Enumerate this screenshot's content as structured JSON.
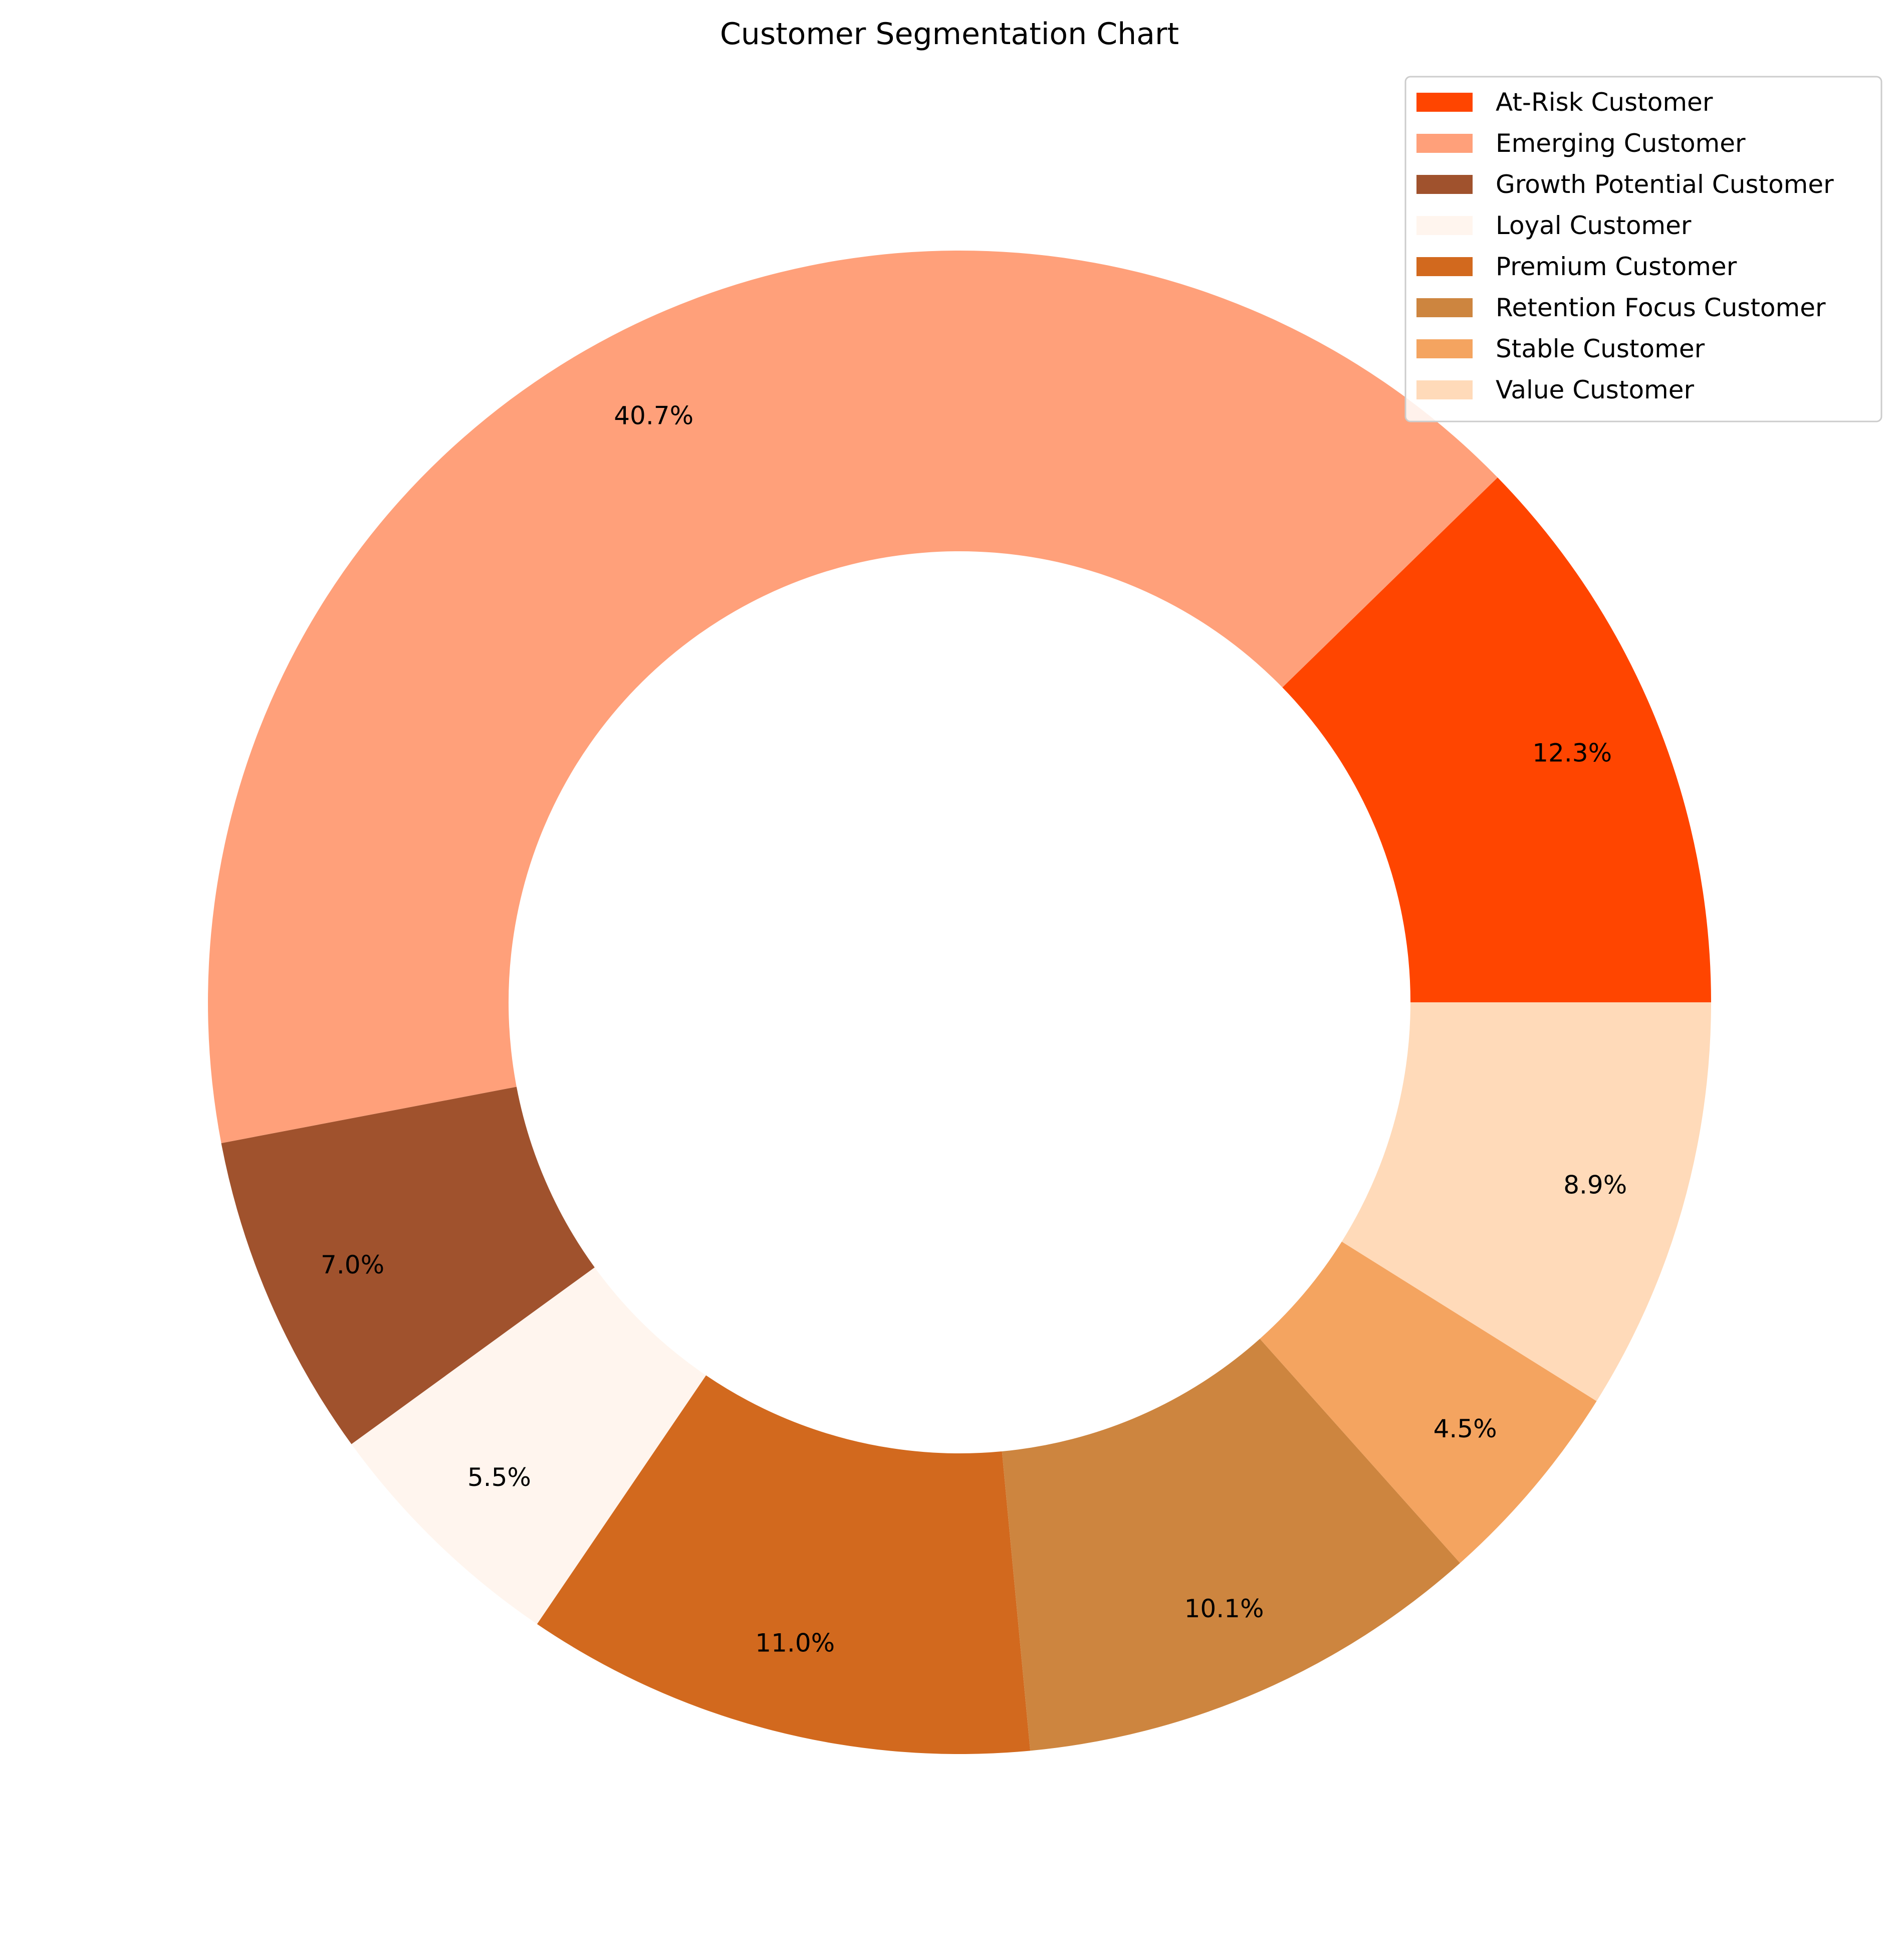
{
  "chart_data": {
    "type": "pie",
    "title": "Customer Segmentation Chart",
    "donut": true,
    "start_angle_deg": 0,
    "direction": "counterclockwise",
    "legend_position": "top-right",
    "slices": [
      {
        "label": "At-Risk Customer",
        "value": 12.3,
        "pct_label": "12.3%",
        "color": "#FF4500"
      },
      {
        "label": "Emerging Customer",
        "value": 40.7,
        "pct_label": "40.7%",
        "color": "#FFA07A"
      },
      {
        "label": "Growth Potential Customer",
        "value": 7.0,
        "pct_label": "7.0%",
        "color": "#A0522D"
      },
      {
        "label": "Loyal Customer",
        "value": 5.5,
        "pct_label": "5.5%",
        "color": "#FFF5EE"
      },
      {
        "label": "Premium Customer",
        "value": 11.0,
        "pct_label": "11.0%",
        "color": "#D2691E"
      },
      {
        "label": "Retention Focus Customer",
        "value": 10.1,
        "pct_label": "10.1%",
        "color": "#CD853F"
      },
      {
        "label": "Stable Customer",
        "value": 4.5,
        "pct_label": "4.5%",
        "color": "#F4A460"
      },
      {
        "label": "Value Customer",
        "value": 8.9,
        "pct_label": "8.9%",
        "color": "#FFDAB9"
      }
    ]
  }
}
